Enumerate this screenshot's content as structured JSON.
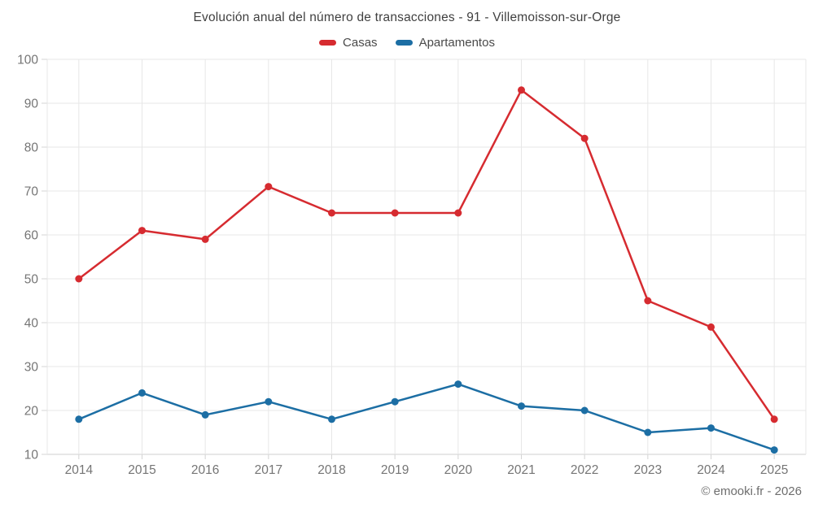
{
  "chart": {
    "title": "Evolución anual del número de transacciones - 91 - Villemoisson-sur-Orge",
    "legend": [
      {
        "label": "Casas",
        "color": "#d62b30"
      },
      {
        "label": "Apartamentos",
        "color": "#1c6ea4"
      }
    ],
    "copyright": "© emooki.fr - 2026"
  },
  "colors": {
    "grid": "#e7e7e7",
    "axis_line": "#cfcfcf",
    "tick": "#d4d4d4",
    "axis_label": "#757575"
  },
  "chart_data": {
    "type": "line",
    "title": "Evolución anual del número de transacciones - 91 - Villemoisson-sur-Orge",
    "categories": [
      "2014",
      "2015",
      "2016",
      "2017",
      "2018",
      "2019",
      "2020",
      "2021",
      "2022",
      "2023",
      "2024",
      "2025"
    ],
    "series": [
      {
        "name": "Casas",
        "color": "#d62b30",
        "values": [
          50,
          61,
          59,
          71,
          65,
          65,
          65,
          93,
          82,
          45,
          39,
          18
        ]
      },
      {
        "name": "Apartamentos",
        "color": "#1c6ea4",
        "values": [
          18,
          24,
          19,
          22,
          18,
          22,
          26,
          21,
          20,
          15,
          16,
          11
        ]
      }
    ],
    "xlabel": "",
    "ylabel": "",
    "ylim": [
      10,
      100
    ],
    "ytick_step": 10,
    "grid": true,
    "legend_position": "top",
    "marker_radius": 4.5,
    "line_width": 2.5
  }
}
